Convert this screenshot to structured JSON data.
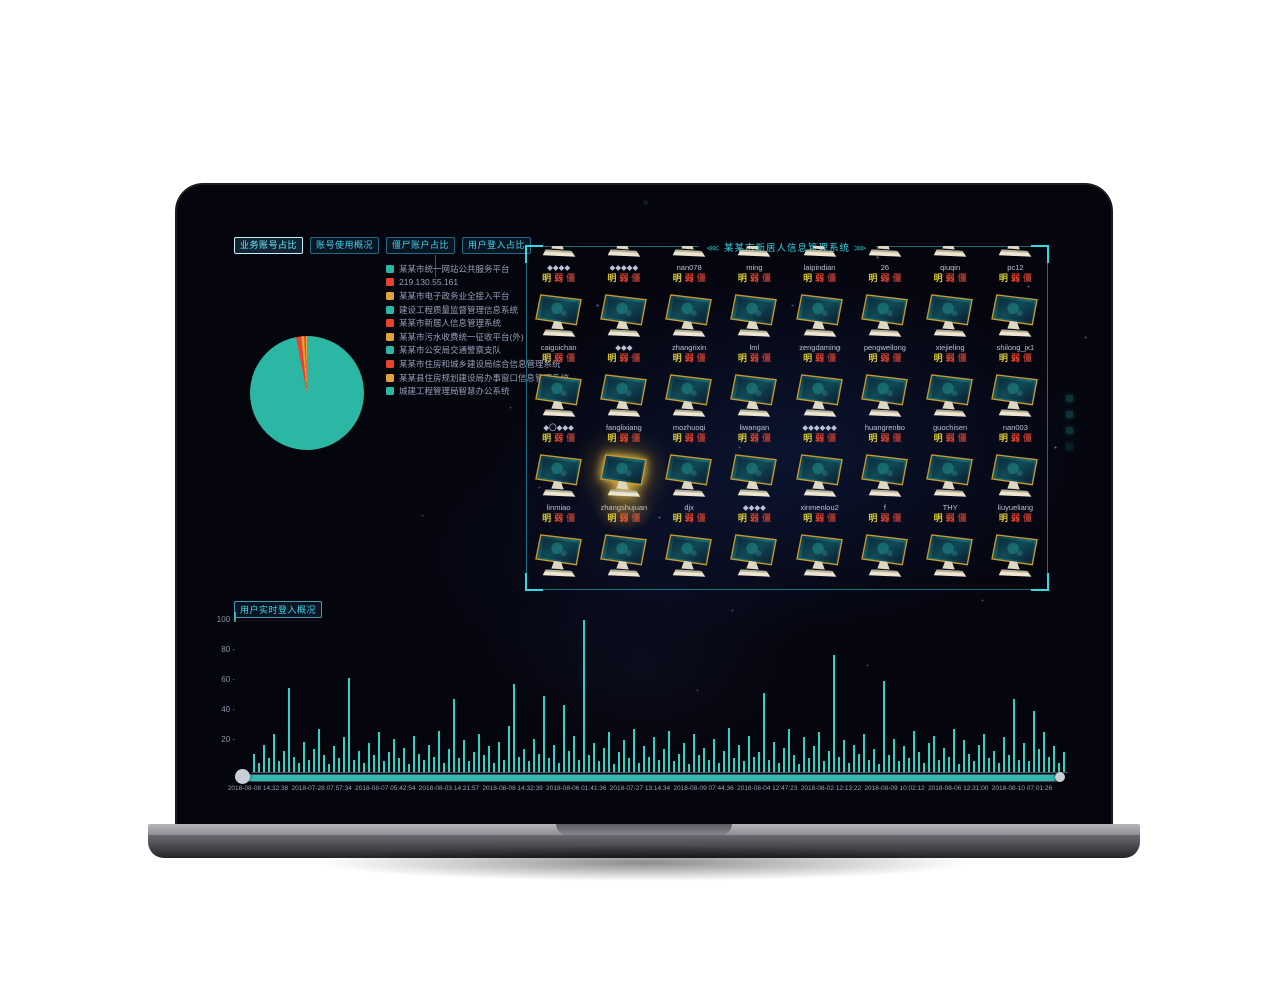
{
  "tabs": {
    "active_index": 0,
    "items": [
      "业务账号占比",
      "账号使用概况",
      "僵尸账户占比",
      "用户登入占比"
    ]
  },
  "legend": {
    "items": [
      {
        "label": "某某市统一网站公共服务平台",
        "color": "#2bb7a3"
      },
      {
        "label": "219.130.55.161",
        "color": "#e8432d"
      },
      {
        "label": "某某市电子政务业全接入平台",
        "color": "#e2a23b"
      },
      {
        "label": "建设工程质量监督管理信息系统",
        "color": "#2bb7a3"
      },
      {
        "label": "某某市新居人信息管理系统",
        "color": "#e8432d"
      },
      {
        "label": "某某市污水收费统一征收平台(外)",
        "color": "#e2a23b"
      },
      {
        "label": "某某市公安局交通警察支队",
        "color": "#2bb7a3"
      },
      {
        "label": "某某市住房和城乡建设局综合信息管理系统",
        "color": "#e8432d"
      },
      {
        "label": "某某县住房规划建设局办事窗口信息管理系统",
        "color": "#e2a23b"
      },
      {
        "label": "城建工程管理局智慧办公系统",
        "color": "#2bb7a3"
      }
    ]
  },
  "panel": {
    "left_arrows": "⋘",
    "title": "某某市新居人信息管理系统",
    "right_arrows": "⋙"
  },
  "user_grid": {
    "tag_labels": [
      "明",
      "弱",
      "僵"
    ],
    "tag_colors": [
      "#d8c832",
      "#e8432d",
      "#a23630"
    ],
    "highlight": {
      "row": 3,
      "col": 1
    },
    "rows": [
      [
        "◆◆◆◆",
        "◆◆◆◆◆",
        "nan078",
        "ming",
        "laipindian",
        "26",
        "qiuqin",
        "pc12"
      ],
      [
        "caiguichan",
        "◆◆◆",
        "zhangrixin",
        "lml",
        "zengdaming",
        "pengweilong",
        "xiejieling",
        "shilong_jx1"
      ],
      [
        "◆〇◆◆◆",
        "fanglixiang",
        "mozhuoqi",
        "liwangan",
        "◆◆◆◆◆◆",
        "huangrenbo",
        "guochisen",
        "nan003"
      ],
      [
        "linmiao",
        "zhangshujuan",
        "djx",
        "◆◆◆◆",
        "xinmenlou2",
        "f",
        "THY",
        "liuyueliang"
      ],
      [
        "",
        "",
        "",
        "",
        "",
        "",
        "",
        ""
      ]
    ]
  },
  "footer": {
    "badge": "用户实时登入概况"
  },
  "chart_data": [
    {
      "type": "pie",
      "title": "业务账号占比",
      "legend_position": "right",
      "slices": [
        {
          "color": "#e8432d",
          "pct": 1.5
        },
        {
          "color": "#e2a23b",
          "pct": 0.8
        },
        {
          "color": "#e8432d",
          "pct": 0.45
        },
        {
          "color": "#e2a23b",
          "pct": 0.35
        },
        {
          "color": "#2bb7a3",
          "pct": 96.9
        }
      ]
    },
    {
      "type": "bar",
      "title": "用户实时登入概况",
      "xlabel": "",
      "ylabel": "",
      "ylim": [
        0,
        100
      ],
      "y_ticks": [
        100,
        80,
        60,
        40,
        20
      ],
      "grid": false,
      "bar_color": "#2fd3c3",
      "datazoom": true,
      "x_labels": [
        "2018-08-08 14:32:38",
        "2018-07-28 07:57:34",
        "2018-08-07 05:42:54",
        "2018-08-03 14:21:57",
        "2018-08-08 14:32:39",
        "2018-08-06 01:41:36",
        "2018-07-27 13:14:34",
        "2018-08-09 07:44:36",
        "2018-08-04 12:47:23",
        "2018-08-02 12:13:22",
        "2018-08-09 10:02:12",
        "2018-08-06 12:31:00",
        "2018-08-10 07:01:26"
      ],
      "values": [
        12,
        6,
        18,
        9,
        25,
        7,
        14,
        55,
        10,
        6,
        20,
        8,
        15,
        28,
        11,
        5,
        17,
        9,
        23,
        62,
        8,
        14,
        6,
        19,
        11,
        26,
        7,
        13,
        22,
        9,
        16,
        5,
        24,
        12,
        8,
        18,
        10,
        27,
        6,
        15,
        48,
        9,
        21,
        7,
        13,
        25,
        11,
        17,
        6,
        20,
        8,
        30,
        58,
        10,
        15,
        7,
        22,
        12,
        50,
        9,
        18,
        6,
        44,
        14,
        24,
        8,
        100,
        11,
        19,
        7,
        16,
        26,
        5,
        13,
        21,
        9,
        28,
        6,
        17,
        10,
        23,
        8,
        15,
        27,
        7,
        12,
        19,
        5,
        25,
        11,
        16,
        8,
        22,
        6,
        14,
        29,
        9,
        18,
        7,
        24,
        10,
        13,
        52,
        8,
        20,
        6,
        16,
        28,
        11,
        5,
        23,
        9,
        17,
        26,
        7,
        14,
        77,
        10,
        21,
        6,
        18,
        12,
        25,
        8,
        15,
        5,
        60,
        11,
        22,
        7,
        17,
        9,
        27,
        13,
        6,
        19,
        24,
        8,
        16,
        10,
        28,
        5,
        21,
        12,
        7,
        18,
        25,
        9,
        14,
        6,
        23,
        11,
        48,
        8,
        19,
        7,
        40,
        15,
        26,
        10,
        17,
        6,
        13
      ]
    }
  ]
}
